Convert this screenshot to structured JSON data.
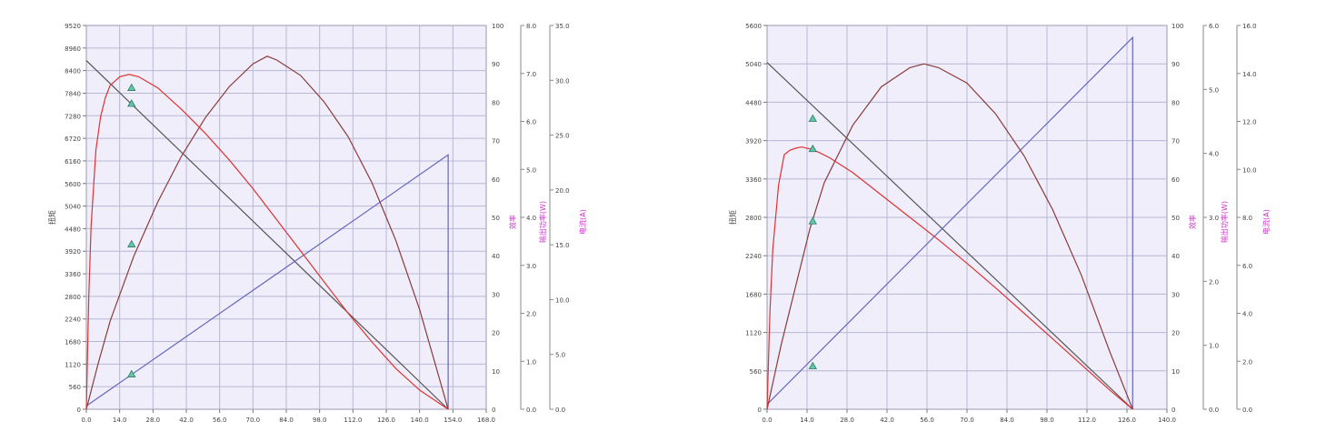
{
  "chart_data": [
    {
      "type": "line",
      "x_ticks": [
        "0.0",
        "14.0",
        "28.0",
        "42.0",
        "56.0",
        "70.0",
        "84.0",
        "98.0",
        "112.0",
        "126.0",
        "140.0",
        "154.0",
        "168.0"
      ],
      "xlim": [
        0,
        168
      ],
      "left_axis": {
        "label": "扭矩",
        "ticks": [
          "0",
          "560",
          "1120",
          "1680",
          "2240",
          "2800",
          "3360",
          "3920",
          "4480",
          "5040",
          "5600",
          "6160",
          "6720",
          "7280",
          "7840",
          "8400",
          "8960",
          "9520"
        ],
        "range": [
          0,
          9520
        ]
      },
      "eff_axis": {
        "label": "效率",
        "ticks": [
          "0",
          "10",
          "20",
          "30",
          "40",
          "50",
          "60",
          "70",
          "80",
          "90",
          "100"
        ],
        "range": [
          0,
          100
        ]
      },
      "power_axis": {
        "label": "输出功率(W)",
        "ticks": [
          "0.0",
          "1.0",
          "2.0",
          "3.0",
          "4.0",
          "5.0",
          "6.0",
          "7.0",
          "8.0"
        ],
        "range": [
          0,
          8
        ]
      },
      "current_axis": {
        "label": "电流(A)",
        "ticks": [
          "0.0",
          "5.0",
          "10.0",
          "15.0",
          "20.0",
          "25.0",
          "30.0",
          "35.0"
        ],
        "range": [
          0,
          35
        ]
      },
      "series": [
        {
          "kind": "speed",
          "color": "#555555",
          "x": [
            0,
            152
          ],
          "y": [
            8650,
            0
          ]
        },
        {
          "kind": "current",
          "color": "#6666bb",
          "x": [
            0,
            152,
            152
          ],
          "y": [
            0.3,
            23.2,
            0
          ]
        },
        {
          "kind": "efficiency",
          "color": "#8b3a3a",
          "x": [
            0,
            5,
            10,
            20,
            30,
            40,
            50,
            60,
            70,
            76,
            80,
            90,
            100,
            110,
            120,
            130,
            140,
            152
          ],
          "y": [
            0,
            12,
            23,
            40,
            54,
            66,
            76,
            84,
            90,
            92,
            91,
            87,
            80,
            71,
            59,
            44,
            26,
            0
          ]
        },
        {
          "kind": "power",
          "color": "#dd3333",
          "x": [
            0,
            1,
            2,
            4,
            6,
            8,
            10,
            14,
            18,
            22,
            30,
            40,
            50,
            60,
            70,
            80,
            90,
            100,
            110,
            120,
            130,
            140,
            152
          ],
          "y": [
            0,
            2.3,
            3.8,
            5.4,
            6.1,
            6.5,
            6.75,
            6.93,
            6.98,
            6.93,
            6.7,
            6.25,
            5.75,
            5.2,
            4.6,
            3.95,
            3.3,
            2.65,
            2.0,
            1.4,
            0.85,
            0.4,
            0
          ]
        }
      ],
      "markers": [
        {
          "axis": "speed",
          "x": 19,
          "y": 7580
        },
        {
          "axis": "power",
          "x": 19,
          "y": 6.7
        },
        {
          "axis": "efficiency",
          "x": 19,
          "y": 43
        },
        {
          "axis": "current",
          "x": 19,
          "y": 3.2
        }
      ]
    },
    {
      "type": "line",
      "x_ticks": [
        "0.0",
        "14.0",
        "28.0",
        "42.0",
        "56.0",
        "70.0",
        "84.0",
        "98.0",
        "112.0",
        "126.0",
        "140.0"
      ],
      "xlim": [
        0,
        140
      ],
      "left_axis": {
        "label": "扭矩",
        "ticks": [
          "0",
          "560",
          "1120",
          "1680",
          "2240",
          "2800",
          "3360",
          "3920",
          "4480",
          "5040",
          "5600"
        ],
        "range": [
          0,
          5600
        ]
      },
      "eff_axis": {
        "label": "效率",
        "ticks": [
          "0",
          "10",
          "20",
          "30",
          "40",
          "50",
          "60",
          "70",
          "80",
          "90",
          "100"
        ],
        "range": [
          0,
          100
        ]
      },
      "power_axis": {
        "label": "输出功率(W)",
        "ticks": [
          "0.0",
          "1.0",
          "2.0",
          "3.0",
          "4.0",
          "5.0",
          "6.0"
        ],
        "range": [
          0,
          6
        ]
      },
      "current_axis": {
        "label": "电流(A)",
        "ticks": [
          "0.0",
          "2.0",
          "4.0",
          "6.0",
          "8.0",
          "10.0",
          "12.0",
          "14.0",
          "16.0"
        ],
        "range": [
          0,
          16
        ]
      },
      "series": [
        {
          "kind": "speed",
          "color": "#555555",
          "x": [
            0,
            128
          ],
          "y": [
            5060,
            0
          ]
        },
        {
          "kind": "current",
          "color": "#6666bb",
          "x": [
            0,
            128,
            128
          ],
          "y": [
            0.2,
            15.5,
            0
          ]
        },
        {
          "kind": "efficiency",
          "color": "#8b3a3a",
          "x": [
            0,
            5,
            10,
            15,
            20,
            30,
            40,
            50,
            55,
            60,
            70,
            80,
            90,
            100,
            110,
            120,
            128
          ],
          "y": [
            0,
            17,
            32,
            47,
            59,
            74,
            84,
            89,
            90,
            89,
            85,
            77,
            66,
            52,
            35,
            15,
            0
          ]
        },
        {
          "kind": "power",
          "color": "#dd3333",
          "x": [
            0,
            1,
            2,
            4,
            6,
            8,
            10,
            12,
            15,
            18,
            22,
            30,
            40,
            50,
            60,
            70,
            80,
            90,
            100,
            110,
            120,
            128
          ],
          "y": [
            0,
            1.5,
            2.5,
            3.5,
            3.98,
            4.05,
            4.08,
            4.1,
            4.07,
            4.02,
            3.93,
            3.7,
            3.35,
            3.0,
            2.65,
            2.28,
            1.9,
            1.5,
            1.1,
            0.7,
            0.3,
            0
          ]
        }
      ],
      "markers": [
        {
          "axis": "speed",
          "x": 16,
          "y": 4240
        },
        {
          "axis": "power",
          "x": 16,
          "y": 4.07
        },
        {
          "axis": "efficiency",
          "x": 16,
          "y": 49
        },
        {
          "axis": "current",
          "x": 16,
          "y": 1.8
        }
      ]
    }
  ]
}
